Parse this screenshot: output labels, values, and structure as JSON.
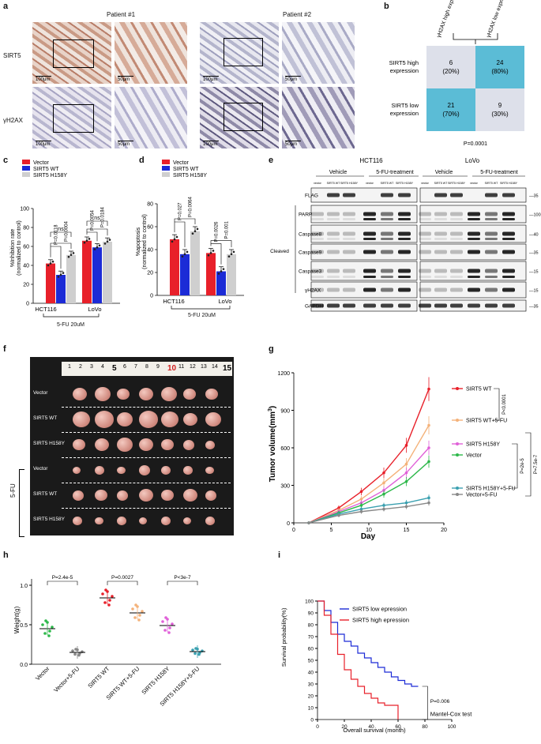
{
  "panel_labels": [
    "a",
    "b",
    "c",
    "d",
    "e",
    "f",
    "g",
    "h",
    "i"
  ],
  "panel_a": {
    "patients": [
      "Patient #1",
      "Patient #2"
    ],
    "rows": [
      "SIRT5",
      "γH2AX"
    ],
    "scale_low": "100μm",
    "scale_high": "50μm"
  },
  "panel_b": {
    "col_headers": [
      "γH2AX high expression",
      "γH2AX low expression"
    ],
    "row_headers": [
      "SIRT5 high expression",
      "SIRT5 low expression"
    ],
    "cells": [
      [
        "6",
        "(20%)",
        "24",
        "(80%)"
      ],
      [
        "21",
        "(70%)",
        "9",
        "(30%)"
      ]
    ],
    "pvalue": "P=0.0001",
    "colors": {
      "high": "#5bbcd6",
      "low": "#dde0ea"
    }
  },
  "legend_c": [
    "Vector",
    "SIRT5 WT",
    "SIRT5 H158Y"
  ],
  "colors": {
    "vector": "#e8202a",
    "wt": "#1c2bd6",
    "h158y": "#cfcfcf",
    "g_vector": "#2db84a",
    "g_wt": "#e8202a",
    "g_wt5fu": "#f4b27a",
    "g_h158y": "#e060d8",
    "g_h158y5fu": "#3aa0b0",
    "g_vector5fu": "#888888"
  },
  "panel_c": {
    "ylabel": "%Inhibition rate (normalized to control)",
    "xgroups": [
      "HCT116",
      "LoVo"
    ],
    "treatment": "5-FU 20uM",
    "ns": "ns",
    "pvals": [
      "P=0.0118",
      "P=0.0004",
      "P=0.0054",
      "P=0.0184"
    ],
    "yticks": [
      "0",
      "20",
      "40",
      "60",
      "80",
      "100"
    ]
  },
  "chart_data": [
    {
      "type": "bar",
      "panel": "c",
      "categories": [
        "HCT116",
        "LoVo"
      ],
      "series": [
        {
          "name": "Vector",
          "values": [
            42,
            66
          ]
        },
        {
          "name": "SIRT5 WT",
          "values": [
            30,
            59
          ]
        },
        {
          "name": "SIRT5 H158Y",
          "values": [
            51,
            65
          ]
        }
      ],
      "ylabel": "%Inhibition rate (normalized to control)",
      "ylim": [
        0,
        100
      ]
    },
    {
      "type": "bar",
      "panel": "d",
      "categories": [
        "HCT116",
        "LoVo"
      ],
      "series": [
        {
          "name": "Vector",
          "values": [
            49,
            37
          ]
        },
        {
          "name": "SIRT5 WT",
          "values": [
            36,
            21
          ]
        },
        {
          "name": "SIRT5 H158Y",
          "values": [
            56,
            36
          ]
        }
      ],
      "ylabel": "%apoptosis (normalized to control)",
      "ylim": [
        0,
        80
      ]
    },
    {
      "type": "line",
      "panel": "g",
      "x": [
        2,
        6,
        9,
        12,
        15,
        18
      ],
      "series": [
        {
          "name": "SIRT5 WT",
          "values": [
            0,
            120,
            250,
            400,
            620,
            1070
          ]
        },
        {
          "name": "SIRT5 WT+5-FU",
          "values": [
            0,
            100,
            190,
            320,
            470,
            780
          ]
        },
        {
          "name": "SIRT5 H158Y",
          "values": [
            0,
            90,
            160,
            260,
            400,
            600
          ]
        },
        {
          "name": "Vector",
          "values": [
            0,
            80,
            140,
            230,
            330,
            490
          ]
        },
        {
          "name": "SIRT5 H158Y+5-FU",
          "values": [
            0,
            70,
            110,
            140,
            160,
            200
          ]
        },
        {
          "name": "Vector+5-FU",
          "values": [
            0,
            60,
            90,
            110,
            130,
            160
          ]
        }
      ],
      "xlabel": "Day",
      "ylabel": "Tumor volume(mm3)",
      "xlim": [
        0,
        20
      ],
      "ylim": [
        0,
        1200
      ]
    },
    {
      "type": "scatter",
      "panel": "h",
      "categories": [
        "Vector",
        "Vector+5-FU",
        "SIRT5 WT",
        "SIRT5 WT+5-FU",
        "SIRT5 H158Y",
        "SIRT5 H158Y+5-FU"
      ],
      "values": [
        0.45,
        0.15,
        0.84,
        0.65,
        0.49,
        0.16
      ],
      "ylabel": "Weight(g)",
      "ylim": [
        0,
        1.0
      ]
    },
    {
      "type": "line",
      "panel": "i",
      "series": [
        {
          "name": "SIRT5 low epression",
          "x": [
            0,
            5,
            10,
            15,
            20,
            25,
            30,
            35,
            40,
            45,
            50,
            55,
            60,
            65,
            70,
            75
          ],
          "values": [
            100,
            92,
            82,
            72,
            66,
            62,
            56,
            52,
            48,
            44,
            40,
            36,
            33,
            30,
            28,
            28
          ]
        },
        {
          "name": "SIRT5 high epression",
          "x": [
            0,
            5,
            10,
            15,
            20,
            25,
            30,
            35,
            40,
            45,
            50,
            55,
            60
          ],
          "values": [
            100,
            88,
            72,
            55,
            42,
            34,
            28,
            22,
            18,
            14,
            12,
            12,
            0
          ]
        }
      ],
      "xlabel": "Overall survival (month)",
      "ylabel": "Survival probability(%)",
      "xlim": [
        0,
        100
      ],
      "ylim": [
        0,
        100
      ]
    }
  ],
  "panel_d": {
    "ylabel": "%apoptosis (normalized to control)",
    "xgroups": [
      "HCT116",
      "LoVo"
    ],
    "treatment": "5-FU 20uM",
    "pvals": [
      "P=0.027",
      "P=0.0064",
      "P=0.0026",
      "P=0.001"
    ],
    "yticks": [
      "0",
      "20",
      "40",
      "60",
      "80"
    ]
  },
  "panel_e": {
    "cells": [
      "HCT116",
      "LoVo"
    ],
    "conditions": [
      "Vehicle",
      "5-FU-treatment",
      "Vehicle",
      "5-FU-treatment"
    ],
    "lanes": [
      "vector",
      "SIRT5 WT",
      "SIRT5 H158Y",
      "vector",
      "SIRT5 WT",
      "SIRT5 H158Y"
    ],
    "blots": [
      "FLAG",
      "PARP",
      "Caspase8",
      "Caspase9",
      "Caspase3",
      "γH2AX",
      "GAPDH"
    ],
    "cleaved": "Cleaved",
    "mw": [
      "35",
      "100",
      "40",
      "35",
      "15",
      "15",
      "35"
    ]
  },
  "panel_f": {
    "ruler": [
      "1",
      "2",
      "3",
      "4",
      "5",
      "6",
      "7",
      "8",
      "9",
      "10",
      "11",
      "12",
      "13",
      "14",
      "15"
    ],
    "rows": [
      "Vector",
      "SIRT5 WT",
      "SIRT5 H158Y",
      "Vector",
      "SIRT5 WT",
      "SIRT5 H158Y"
    ],
    "treatment": "5-FU"
  },
  "panel_g": {
    "ylabel": "Tumor volume(mm",
    "ylabel_sup": "3",
    "xlabel": "Day",
    "yticks": [
      "0",
      "300",
      "600",
      "900",
      "1200"
    ],
    "xticks": [
      "0",
      "5",
      "10",
      "15",
      "20"
    ],
    "legend": [
      "SIRT5 WT",
      "SIRT5 WT+5-FU",
      "SIRT5 H158Y",
      "Vector",
      "SIRT5 H158Y+5-FU",
      "Vector+5-FU"
    ],
    "pvals": [
      "P<0.0001",
      "P=2e-5",
      "P=7.5e-7"
    ]
  },
  "panel_h": {
    "ylabel": "Weight(g)",
    "yticks": [
      "0.0",
      "0.5",
      "1.0"
    ],
    "pvals": [
      "P=2.4e-5",
      "P=0.0027",
      "P<3e-7"
    ],
    "xlabels": [
      "Vector",
      "Vector+5-FU",
      "SIRT5 WT",
      "SIRT5 WT+5-FU",
      "SIRT5 H158Y",
      "SIRT5 H158Y+5-FU"
    ]
  },
  "panel_i": {
    "ylabel": "Survival probability(%)",
    "xlabel": "Overall survival (month)",
    "yticks": [
      "0",
      "10",
      "20",
      "30",
      "40",
      "50",
      "60",
      "70",
      "80",
      "90",
      "100"
    ],
    "xticks": [
      "0",
      "20",
      "40",
      "60",
      "80",
      "100"
    ],
    "legend": [
      "SIRT5 low epression",
      "SIRT5 high epression"
    ],
    "pvalue": "P=0.006",
    "test": "Mantel-Cox test"
  }
}
